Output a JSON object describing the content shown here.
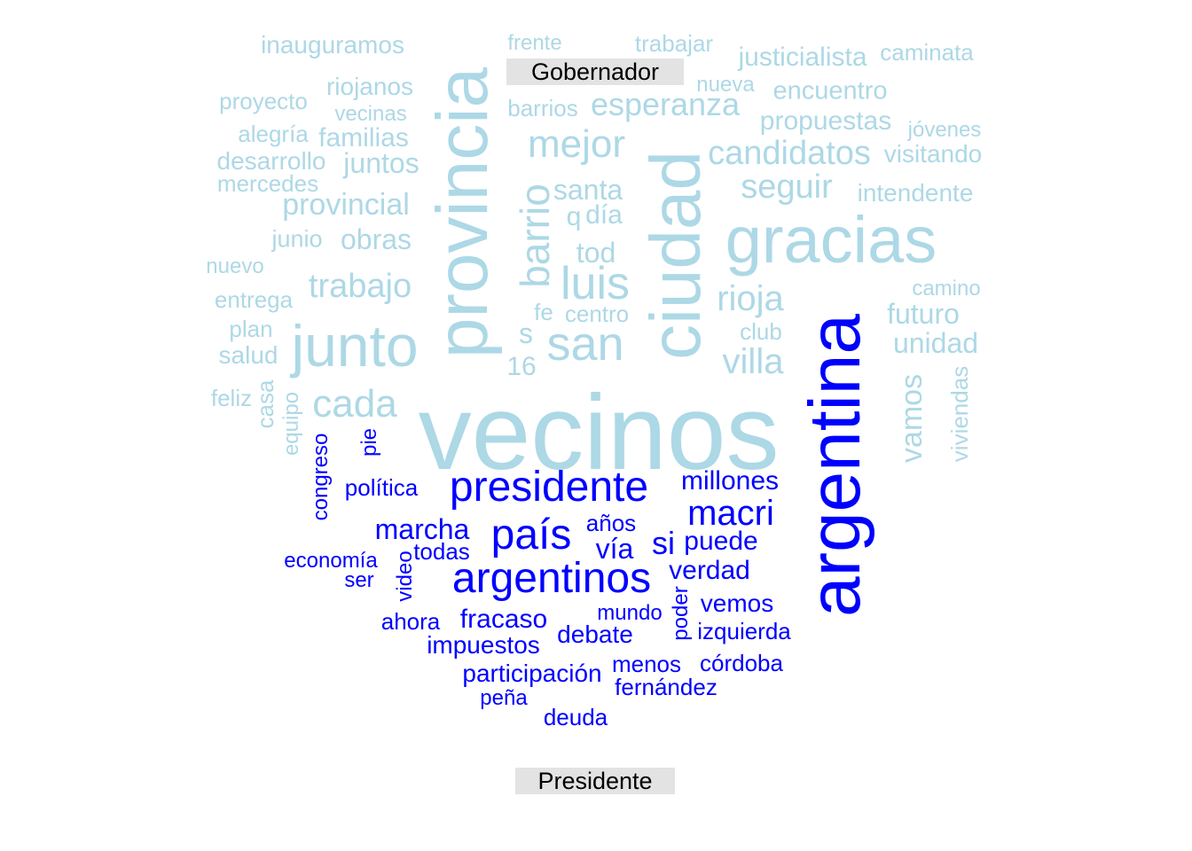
{
  "chart_data": {
    "type": "comparison wordcloud",
    "groups": [
      {
        "label": "Gobernador",
        "color": "#add8e6",
        "words": [
          "vecinos",
          "gracias",
          "ciudad",
          "provincia",
          "junto",
          "san",
          "luis",
          "mejor",
          "rioja",
          "villa",
          "barrio",
          "trabajo",
          "cada",
          "esperanza",
          "candidatos",
          "seguir",
          "provincial",
          "santa",
          "obras",
          "juntos",
          "propuestas",
          "familias",
          "riojanos",
          "inauguramos",
          "justicialista",
          "encuentro",
          "desarrollo",
          "intendente",
          "caminata",
          "proyecto",
          "trabajar",
          "unidad",
          "futuro",
          "vamos",
          "viviendas",
          "alegría",
          "día",
          "tod",
          "centro",
          "club",
          "s",
          "fe",
          "16",
          "q",
          "vecinas",
          "jóvenes",
          "visitando",
          "mercedes",
          "frente",
          "nueva",
          "barrios",
          "junio",
          "nuevo",
          "entrega",
          "plan",
          "salud",
          "feliz",
          "casa",
          "equipo",
          "camino"
        ]
      },
      {
        "label": "Presidente",
        "color": "#0000ff",
        "words": [
          "argentina",
          "presidente",
          "argentinos",
          "país",
          "macri",
          "millones",
          "marcha",
          "si",
          "vía",
          "años",
          "puede",
          "verdad",
          "todas",
          "economía",
          "ser",
          "video",
          "política",
          "congreso",
          "pie",
          "fracaso",
          "impuestos",
          "debate",
          "mundo",
          "poder",
          "vemos",
          "izquierda",
          "ahora",
          "participación",
          "menos",
          "córdoba",
          "fernández",
          "peña",
          "deuda"
        ]
      }
    ]
  },
  "labels": {
    "top": "Gobernador",
    "bottom": "Presidente"
  }
}
